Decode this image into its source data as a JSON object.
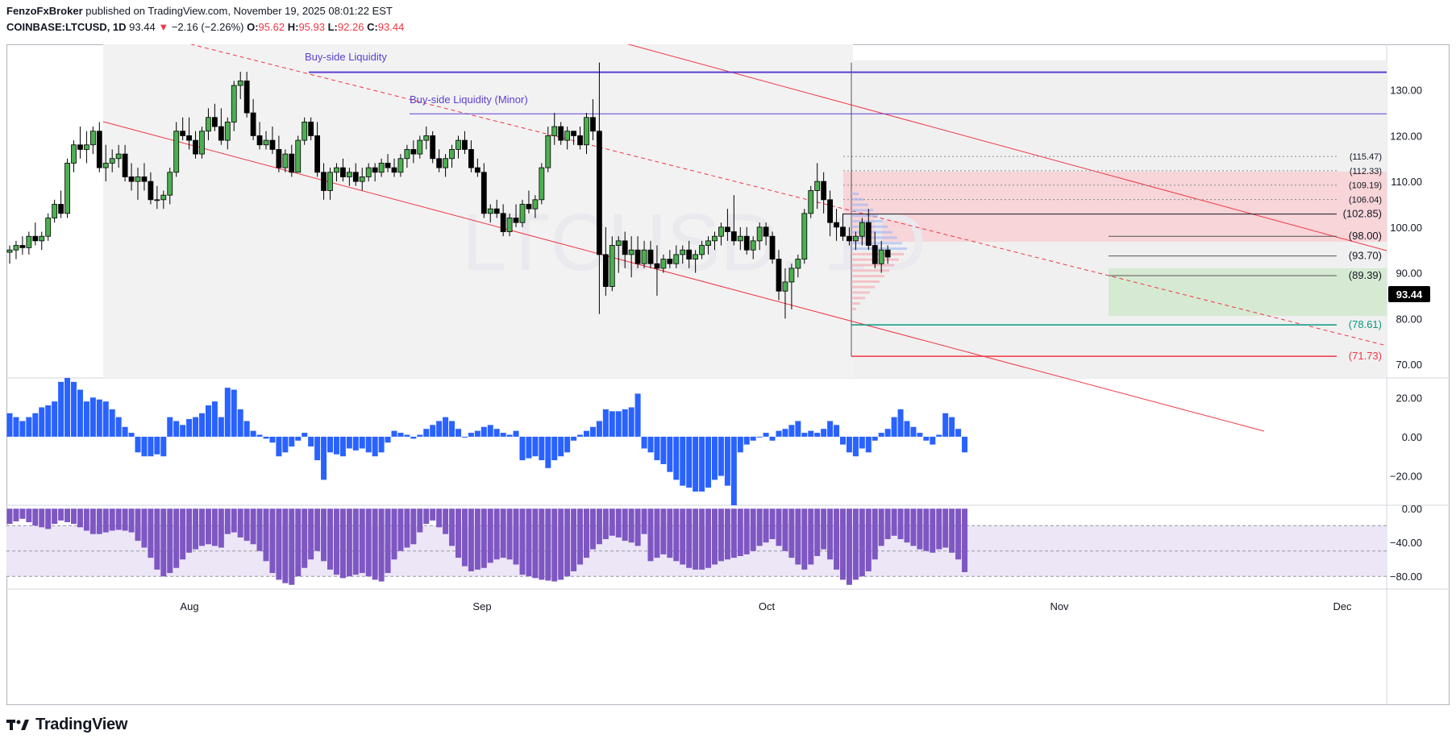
{
  "header": {
    "author": "FenzoFxBroker",
    "published_text": "published on TradingView.com, November 19, 2025 08:01:22 EST",
    "symbol": "COINBASE:LTCUSD, 1D",
    "last": "93.44",
    "change_arrow": "▼",
    "change": "−2.16 (−2.26%)",
    "o_label": "O:",
    "o_value": "95.62",
    "h_label": "H:",
    "h_value": "95.93",
    "l_label": "L:",
    "l_value": "92.26",
    "c_label": "C:",
    "c_value": "93.44"
  },
  "watermark": "LTCUSD, 1D",
  "footer": {
    "logo_icon": "tradingview-logo-icon",
    "brand": "TradingView"
  },
  "colors": {
    "up": "#4caf50",
    "down": "#000000",
    "osc1": "#2962ff",
    "osc2": "#7e57c2",
    "channel": "#f23645",
    "liquidity": "#5b3fd1",
    "teal": "#089981"
  },
  "chart_data": [
    {
      "type": "candlestick",
      "title": "",
      "y_axis_ticks": [
        "130.00",
        "120.00",
        "110.00",
        "100.00",
        "90.00",
        "80.00",
        "70.00"
      ],
      "ylim": [
        67,
        140
      ],
      "x_axis_ticks": [
        "Aug",
        "Sep",
        "Oct",
        "Nov",
        "Dec"
      ],
      "last_price_label": "93.44",
      "annotations": [
        "Buy-side Liquidity",
        "Buy-side Liquidity (Minor)"
      ],
      "price_levels": [
        {
          "label": "(115.47)",
          "value": 115.47,
          "color": "#131722"
        },
        {
          "label": "(112.33)",
          "value": 112.33,
          "color": "#131722"
        },
        {
          "label": "(109.19)",
          "value": 109.19,
          "color": "#131722"
        },
        {
          "label": "(106.04)",
          "value": 106.04,
          "color": "#131722"
        },
        {
          "label": "(102.85)",
          "value": 102.85,
          "color": "#131722"
        },
        {
          "label": "(98.00)",
          "value": 98.0,
          "color": "#131722"
        },
        {
          "label": "(93.70)",
          "value": 93.7,
          "color": "#131722"
        },
        {
          "label": "(89.39)",
          "value": 89.39,
          "color": "#131722"
        },
        {
          "label": "(78.61)",
          "value": 78.61,
          "color": "#089981"
        },
        {
          "label": "(71.73)",
          "value": 71.73,
          "color": "#f23645"
        }
      ],
      "buy_side_liquidity": 133.9,
      "buy_side_liquidity_minor": 124.8,
      "candles": [
        [
          94.5,
          96,
          92,
          95
        ],
        [
          95,
          97,
          93,
          96
        ],
        [
          96,
          98,
          94,
          95.5
        ],
        [
          95.5,
          99,
          94,
          98
        ],
        [
          98,
          101,
          96,
          97
        ],
        [
          97,
          99,
          95,
          98
        ],
        [
          98,
          103,
          97,
          102
        ],
        [
          102,
          106,
          101,
          105
        ],
        [
          105,
          108,
          102,
          103
        ],
        [
          103,
          115,
          102,
          114
        ],
        [
          114,
          119,
          112,
          118
        ],
        [
          118,
          122,
          115,
          117
        ],
        [
          117,
          121,
          114,
          118
        ],
        [
          118,
          122,
          116,
          121
        ],
        [
          121,
          123,
          112,
          113
        ],
        [
          113,
          118,
          110,
          114
        ],
        [
          114,
          117,
          112,
          115
        ],
        [
          115,
          118,
          113,
          116
        ],
        [
          116,
          118,
          110,
          111
        ],
        [
          111,
          114,
          108,
          110
        ],
        [
          110,
          113,
          106,
          111
        ],
        [
          111,
          114,
          108,
          110
        ],
        [
          110,
          112,
          105,
          106
        ],
        [
          106,
          109,
          104,
          106
        ],
        [
          106,
          108,
          104,
          107
        ],
        [
          107,
          113,
          105,
          112
        ],
        [
          112,
          123,
          111,
          121
        ],
        [
          121,
          124,
          119,
          120
        ],
        [
          120,
          124,
          117,
          119
        ],
        [
          119,
          121,
          115,
          116
        ],
        [
          116,
          122,
          115,
          121
        ],
        [
          121,
          126,
          119,
          124
        ],
        [
          124,
          127,
          121,
          122
        ],
        [
          122,
          126,
          118,
          119
        ],
        [
          119,
          124,
          117,
          123
        ],
        [
          123,
          132,
          121,
          131
        ],
        [
          131,
          134,
          128,
          132
        ],
        [
          132,
          134,
          124,
          125
        ],
        [
          125,
          128,
          119,
          120
        ],
        [
          120,
          123,
          117,
          118
        ],
        [
          118,
          121,
          117,
          119
        ],
        [
          119,
          122,
          116,
          117
        ],
        [
          117,
          120,
          112,
          113
        ],
        [
          113,
          117,
          112,
          116
        ],
        [
          116,
          118,
          111,
          112
        ],
        [
          112,
          120,
          112,
          119
        ],
        [
          119,
          124,
          118,
          123
        ],
        [
          123,
          124,
          119,
          120
        ],
        [
          120,
          123,
          111,
          112
        ],
        [
          112,
          114,
          106,
          108
        ],
        [
          108,
          113,
          106,
          112
        ],
        [
          112,
          114,
          110,
          113
        ],
        [
          113,
          115,
          110,
          111
        ],
        [
          111,
          113,
          109,
          112
        ],
        [
          112,
          114,
          109,
          110
        ],
        [
          110,
          113,
          108,
          111
        ],
        [
          111,
          114,
          110,
          113
        ],
        [
          113,
          114,
          110,
          112
        ],
        [
          112,
          115,
          111,
          114
        ],
        [
          114,
          116,
          112,
          113
        ],
        [
          113,
          115,
          111,
          112
        ],
        [
          112,
          116,
          111,
          115
        ],
        [
          115,
          118,
          113,
          117
        ],
        [
          117,
          119,
          114,
          116
        ],
        [
          116,
          120,
          115,
          119
        ],
        [
          119,
          122,
          117,
          120
        ],
        [
          120,
          121,
          114,
          115
        ],
        [
          115,
          117,
          112,
          113
        ],
        [
          113,
          116,
          111,
          115
        ],
        [
          115,
          118,
          113,
          117
        ],
        [
          117,
          120,
          115,
          119
        ],
        [
          119,
          121,
          116,
          117
        ],
        [
          117,
          119,
          112,
          113
        ],
        [
          113,
          115,
          111,
          112
        ],
        [
          112,
          114,
          102,
          103
        ],
        [
          103,
          105,
          101,
          104
        ],
        [
          104,
          106,
          102,
          103
        ],
        [
          103,
          105,
          98,
          99
        ],
        [
          99,
          103,
          98,
          102
        ],
        [
          102,
          105,
          100,
          101
        ],
        [
          101,
          106,
          100,
          105
        ],
        [
          105,
          108,
          103,
          104
        ],
        [
          104,
          107,
          102,
          106
        ],
        [
          106,
          114,
          105,
          113
        ],
        [
          113,
          122,
          112,
          120
        ],
        [
          120,
          125,
          118,
          122
        ],
        [
          122,
          123,
          118,
          119
        ],
        [
          119,
          122,
          117,
          121
        ],
        [
          121,
          121,
          118,
          120
        ],
        [
          120,
          122,
          117,
          118
        ],
        [
          118,
          125,
          116,
          124
        ],
        [
          124,
          128,
          119,
          121
        ],
        [
          121,
          136,
          81,
          94
        ],
        [
          94,
          100,
          85,
          87
        ],
        [
          87,
          98,
          86,
          96
        ],
        [
          96,
          98,
          90,
          97
        ],
        [
          97,
          99,
          91,
          94
        ],
        [
          94,
          98,
          89,
          95
        ],
        [
          95,
          98,
          91,
          92
        ],
        [
          92,
          97,
          91,
          95
        ],
        [
          95,
          97,
          91,
          92
        ],
        [
          92,
          96,
          85,
          91
        ],
        [
          91,
          94,
          90,
          93
        ],
        [
          93,
          95,
          91,
          92
        ],
        [
          92,
          96,
          91,
          94
        ],
        [
          94,
          96,
          92,
          95
        ],
        [
          95,
          97,
          91,
          93
        ],
        [
          93,
          95,
          90,
          94
        ],
        [
          94,
          97,
          93,
          96
        ],
        [
          96,
          98,
          94,
          97
        ],
        [
          97,
          99,
          95,
          98
        ],
        [
          98,
          101,
          96,
          100
        ],
        [
          100,
          104,
          97,
          99
        ],
        [
          99,
          107,
          96,
          97
        ],
        [
          97,
          100,
          95,
          98
        ],
        [
          98,
          100,
          94,
          95
        ],
        [
          95,
          98,
          93,
          97
        ],
        [
          97,
          101,
          95,
          100
        ],
        [
          100,
          101,
          96,
          98
        ],
        [
          98,
          99,
          92,
          93
        ],
        [
          93,
          95,
          84,
          86
        ],
        [
          86,
          91,
          80,
          88
        ],
        [
          88,
          92,
          82,
          91
        ],
        [
          91,
          94,
          89,
          93
        ],
        [
          93,
          104,
          92,
          103
        ],
        [
          103,
          109,
          102,
          108
        ],
        [
          108,
          114,
          104,
          110
        ],
        [
          110,
          112,
          103,
          106
        ],
        [
          106,
          108,
          98,
          101
        ],
        [
          101,
          104,
          97,
          100
        ],
        [
          100,
          103,
          97,
          98
        ],
        [
          98,
          100,
          96,
          97
        ],
        [
          97,
          99,
          95,
          98
        ],
        [
          98,
          102,
          96,
          101
        ],
        [
          101,
          104,
          95,
          96
        ],
        [
          96,
          99,
          91,
          92
        ],
        [
          92,
          97,
          90,
          95
        ],
        [
          95,
          96,
          92,
          93.44
        ]
      ]
    },
    {
      "type": "bar",
      "title": "",
      "y_axis_ticks": [
        "20.00",
        "0.00",
        "−20.00"
      ],
      "ylim": [
        -35,
        30
      ],
      "values": [
        12,
        10,
        8,
        10,
        12,
        15,
        16,
        18,
        28,
        30,
        28,
        24,
        18,
        20,
        19,
        18,
        14,
        10,
        5,
        2,
        -8,
        -10,
        -10,
        -9,
        -10,
        10,
        8,
        6,
        9,
        10,
        12,
        16,
        18,
        10,
        25,
        24,
        14,
        8,
        3,
        1,
        -1,
        -3,
        -10,
        -8,
        -5,
        -2,
        2,
        -5,
        -12,
        -22,
        -8,
        -9,
        -10,
        -6,
        -7,
        -6,
        -8,
        -10,
        -8,
        -3,
        3,
        2,
        1,
        -1,
        1,
        4,
        6,
        8,
        10,
        8,
        4,
        0,
        2,
        3,
        5,
        6,
        4,
        2,
        1,
        3,
        -12,
        -11,
        -10,
        -12,
        -16,
        -12,
        -10,
        -8,
        -2,
        1,
        3,
        5,
        8,
        14,
        13,
        13,
        14,
        15,
        22,
        -6,
        -8,
        -12,
        -14,
        -18,
        -22,
        -25,
        -26,
        -28,
        -28,
        -26,
        -22,
        -20,
        -25,
        -35,
        -8,
        -4,
        -2,
        0,
        2,
        -2,
        3,
        4,
        6,
        8,
        2,
        3,
        2,
        4,
        8,
        6,
        -4,
        -8,
        -10,
        -6,
        -8,
        -2,
        2,
        4,
        10,
        14,
        8,
        5,
        2,
        -2,
        -4,
        1,
        12,
        10,
        4,
        -8
      ]
    },
    {
      "type": "bar",
      "title": "",
      "y_axis_ticks": [
        "0.00",
        "−40.00",
        "−80.00"
      ],
      "ylim": [
        -95,
        4
      ],
      "values": [
        -18,
        -15,
        -12,
        -16,
        -20,
        -22,
        -24,
        -18,
        -14,
        -16,
        -18,
        -22,
        -26,
        -30,
        -30,
        -28,
        -26,
        -25,
        -26,
        -28,
        -38,
        -46,
        -58,
        -72,
        -80,
        -76,
        -70,
        -60,
        -52,
        -48,
        -44,
        -42,
        -44,
        -46,
        -30,
        -28,
        -34,
        -38,
        -42,
        -50,
        -62,
        -76,
        -84,
        -88,
        -90,
        -80,
        -70,
        -60,
        -50,
        -62,
        -72,
        -78,
        -82,
        -80,
        -78,
        -76,
        -80,
        -84,
        -86,
        -76,
        -60,
        -50,
        -46,
        -42,
        -28,
        -18,
        -14,
        -22,
        -30,
        -44,
        -58,
        -68,
        -74,
        -72,
        -70,
        -64,
        -60,
        -58,
        -60,
        -66,
        -78,
        -80,
        -82,
        -84,
        -85,
        -86,
        -84,
        -80,
        -74,
        -66,
        -58,
        -48,
        -42,
        -36,
        -32,
        -34,
        -38,
        -40,
        -44,
        -30,
        -62,
        -58,
        -54,
        -58,
        -62,
        -66,
        -70,
        -72,
        -72,
        -70,
        -66,
        -62,
        -60,
        -58,
        -56,
        -54,
        -50,
        -44,
        -40,
        -36,
        -44,
        -50,
        -58,
        -66,
        -72,
        -66,
        -56,
        -48,
        -60,
        -72,
        -84,
        -90,
        -84,
        -80,
        -74,
        -60,
        -44,
        -36,
        -32,
        -36,
        -40,
        -44,
        -48,
        -50,
        -52,
        -48,
        -46,
        -52,
        -60,
        -75
      ]
    }
  ]
}
